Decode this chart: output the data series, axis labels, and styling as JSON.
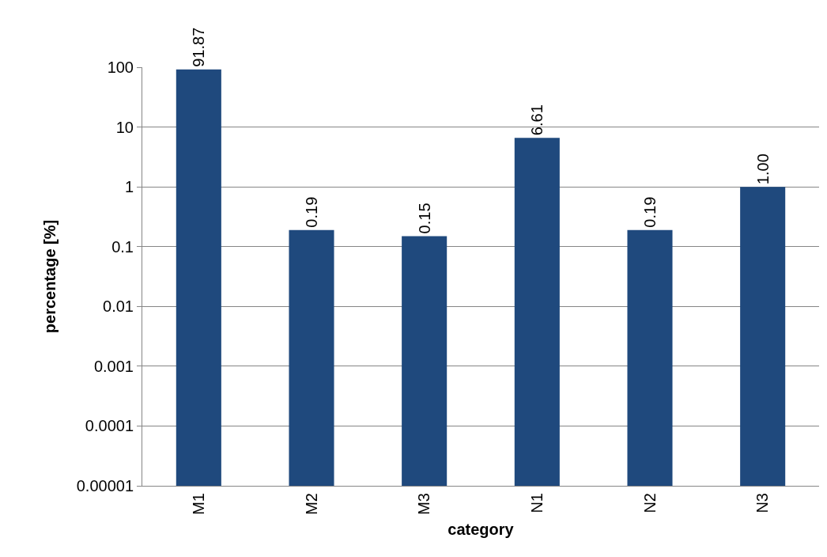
{
  "chart_data": {
    "type": "bar",
    "xlabel": "category",
    "ylabel": "percentage [%]",
    "categories": [
      "M1",
      "M2",
      "M3",
      "N1",
      "N2",
      "N3"
    ],
    "values": [
      91.87,
      0.19,
      0.15,
      6.61,
      0.19,
      1.0
    ],
    "value_labels": [
      "91.87",
      "0.19",
      "0.15",
      "6.61",
      "0.19",
      "1.00"
    ],
    "color": "#1f497d",
    "log": true,
    "ylim": [
      1e-05,
      100
    ],
    "yticks": [
      {
        "value": 1e-05,
        "label": "0.00001"
      },
      0.0001,
      0.001,
      0.01,
      0.1,
      1,
      10,
      100
    ],
    "grid": "y"
  }
}
